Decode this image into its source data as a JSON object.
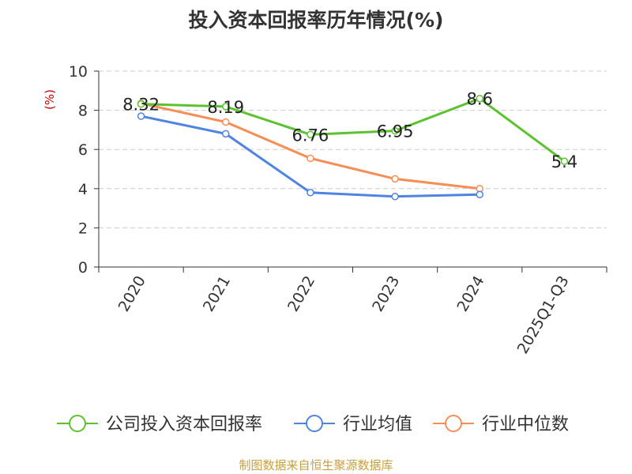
{
  "chart_data": {
    "type": "line",
    "title": "投入资本回报率历年情况(%)",
    "ylabel": "(%)",
    "xlabel": "",
    "ylim": [
      0,
      10
    ],
    "yticks": [
      0,
      2,
      4,
      6,
      8,
      10
    ],
    "grid": true,
    "legend_position": "bottom",
    "categories": [
      "2020",
      "2021",
      "2022",
      "2023",
      "2024",
      "2025Q1-Q3"
    ],
    "series": [
      {
        "name": "公司投入资本回报率",
        "color": "#5cc22f",
        "values": [
          8.32,
          8.19,
          6.76,
          6.95,
          8.6,
          5.4
        ],
        "labels": [
          "8.32",
          "8.19",
          "6.76",
          "6.95",
          "8.6",
          "5.4"
        ]
      },
      {
        "name": "行业均值",
        "color": "#4f84e0",
        "values": [
          7.7,
          6.8,
          3.8,
          3.6,
          3.7,
          null
        ]
      },
      {
        "name": "行业中位数",
        "color": "#f68e56",
        "values": [
          8.35,
          7.4,
          5.55,
          4.5,
          4.0,
          null
        ]
      }
    ]
  },
  "source": "制图数据来自恒生聚源数据库",
  "colors": {
    "title": "#333333",
    "axis": "#333333",
    "grid": "#cccccc",
    "ylabel": "#cc0000",
    "source": "#c8a040"
  }
}
